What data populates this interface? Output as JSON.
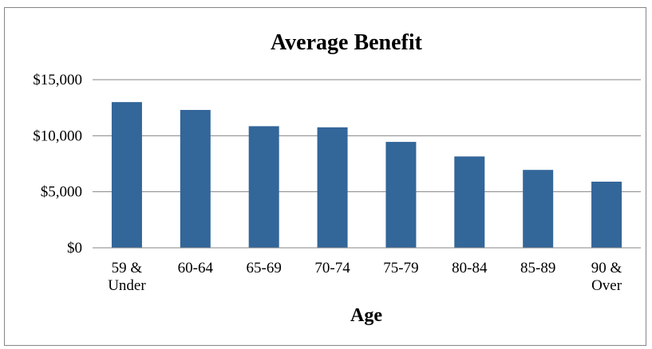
{
  "chart_data": {
    "type": "bar",
    "title": "Average Benefit",
    "xlabel": "Age",
    "ylabel": "",
    "categories": [
      [
        "59 &",
        "Under"
      ],
      [
        "60-64"
      ],
      [
        "65-69"
      ],
      [
        "70-74"
      ],
      [
        "75-79"
      ],
      [
        "80-84"
      ],
      [
        "85-89"
      ],
      [
        "90 &",
        "Over"
      ]
    ],
    "values": [
      13000,
      12300,
      10850,
      10750,
      9450,
      8150,
      6950,
      5900
    ],
    "ylim": [
      0,
      15000
    ],
    "yticks": [
      0,
      5000,
      10000,
      15000
    ],
    "ytick_labels": [
      "$0",
      "$5,000",
      "$10,000",
      "$15,000"
    ],
    "grid": true,
    "legend": "none",
    "bar_color": "#336699",
    "gridline_color": "#868686"
  }
}
